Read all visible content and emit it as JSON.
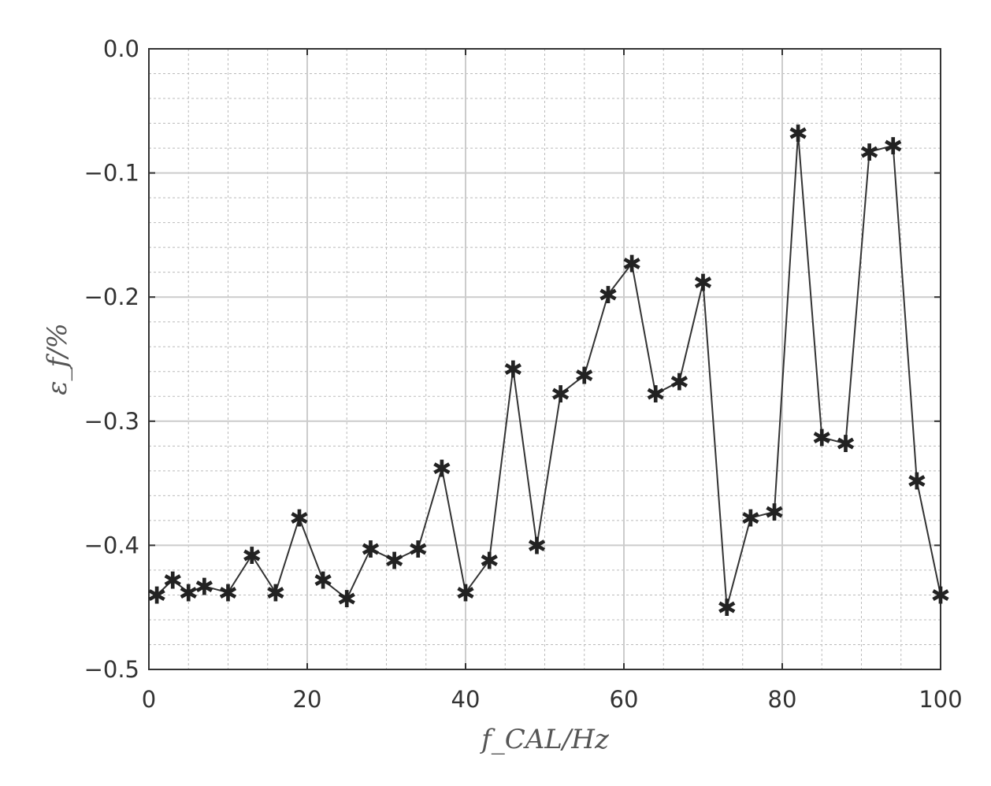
{
  "chart_data": {
    "type": "line",
    "title": "",
    "xlabel": "f_CAL/Hz",
    "ylabel": "ε_f/%",
    "xlim": [
      0,
      100
    ],
    "ylim": [
      -0.5,
      0.0
    ],
    "x_major_ticks": [
      0,
      20,
      40,
      60,
      80,
      100
    ],
    "x_tick_labels": [
      "0",
      "20",
      "40",
      "60",
      "80",
      "100"
    ],
    "x_minor_step": 5,
    "y_major_ticks": [
      0.0,
      -0.1,
      -0.2,
      -0.3,
      -0.4,
      -0.5
    ],
    "y_tick_labels": [
      "0.0",
      "−0.1",
      "−0.2",
      "−0.3",
      "−0.4",
      "−0.5"
    ],
    "y_minor_step": 0.02,
    "grid": true,
    "marker": "star",
    "line_color": "#333333",
    "grid_major_color": "#cccccc",
    "grid_minor_color": "#bbbbbb",
    "series": [
      {
        "x": [
          1,
          3,
          5,
          7,
          10,
          13,
          16,
          19,
          22,
          25,
          28,
          31,
          34,
          37,
          40,
          43,
          46,
          49,
          52,
          55,
          58,
          61,
          64,
          67,
          70,
          73,
          76,
          79,
          82,
          85,
          88,
          91,
          94,
          97,
          100
        ],
        "y": [
          -0.44,
          -0.428,
          -0.438,
          -0.433,
          -0.438,
          -0.408,
          -0.438,
          -0.378,
          -0.428,
          -0.443,
          -0.403,
          -0.412,
          -0.403,
          -0.338,
          -0.438,
          -0.412,
          -0.258,
          -0.4,
          -0.278,
          -0.263,
          -0.198,
          -0.173,
          -0.278,
          -0.268,
          -0.188,
          -0.45,
          -0.378,
          -0.373,
          -0.068,
          -0.313,
          -0.318,
          -0.083,
          -0.078,
          -0.348,
          -0.44
        ]
      }
    ]
  }
}
